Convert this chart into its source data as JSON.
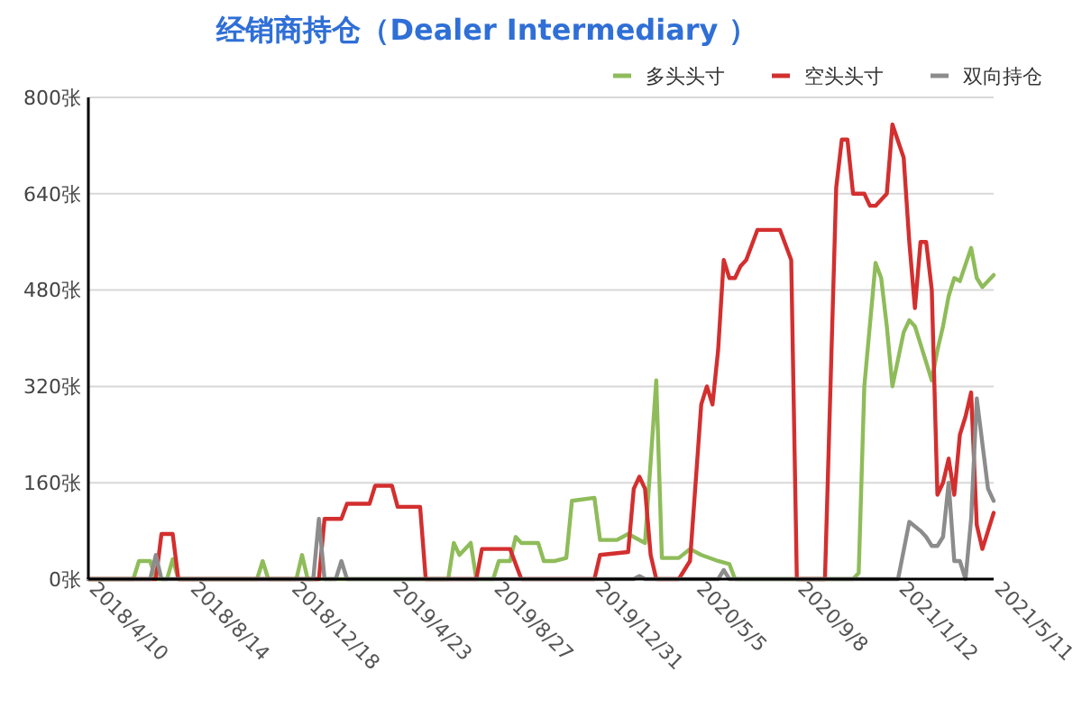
{
  "chart_data": {
    "type": "line",
    "title": "经销商持仓（Dealer Intermediary ）",
    "legend": "top right",
    "grid": "y",
    "marker": "none",
    "line_style": "solid",
    "xlim": [
      "2018-04-10",
      "2021-05-11"
    ],
    "xticks": [
      {
        "value": "2018-04-10",
        "label": "2018/4/10"
      },
      {
        "value": "2018-08-14",
        "label": "2018/8/14"
      },
      {
        "value": "2018-12-18",
        "label": "2018/12/18"
      },
      {
        "value": "2019-04-23",
        "label": "2019/4/23"
      },
      {
        "value": "2019-08-27",
        "label": "2019/8/27"
      },
      {
        "value": "2019-12-31",
        "label": "2019/12/31"
      },
      {
        "value": "2020-05-05",
        "label": "2020/5/5"
      },
      {
        "value": "2020-09-08",
        "label": "2020/9/8"
      },
      {
        "value": "2021-01-12",
        "label": "2021/1/12"
      },
      {
        "value": "2021-05-11",
        "label": "2021/5/11"
      }
    ],
    "ylim": [
      0,
      800
    ],
    "yticks": [
      {
        "value": 0,
        "label": "0张"
      },
      {
        "value": 160,
        "label": "160张"
      },
      {
        "value": 320,
        "label": "320张"
      },
      {
        "value": 480,
        "label": "480张"
      },
      {
        "value": 640,
        "label": "640张"
      },
      {
        "value": 800,
        "label": "800张"
      }
    ],
    "series": [
      {
        "name": "多头头寸",
        "color": "#8fbc5a",
        "x": [
          "2018-04-10",
          "2018-06-05",
          "2018-06-12",
          "2018-06-26",
          "2018-07-03",
          "2018-07-17",
          "2018-07-24",
          "2018-07-31",
          "2018-11-06",
          "2018-11-13",
          "2018-11-20",
          "2018-12-25",
          "2019-01-01",
          "2019-01-08",
          "2019-07-02",
          "2019-07-09",
          "2019-07-16",
          "2019-07-30",
          "2019-08-06",
          "2019-08-27",
          "2019-09-03",
          "2019-09-17",
          "2019-09-24",
          "2019-10-01",
          "2019-10-22",
          "2019-10-29",
          "2019-11-12",
          "2019-11-26",
          "2019-12-03",
          "2019-12-31",
          "2020-01-07",
          "2020-01-28",
          "2020-02-11",
          "2020-03-03",
          "2020-03-17",
          "2020-03-24",
          "2020-04-14",
          "2020-04-28",
          "2020-05-12",
          "2020-06-02",
          "2020-06-16",
          "2020-06-23",
          "2020-11-17",
          "2020-11-24",
          "2020-12-01",
          "2020-12-15",
          "2020-12-22",
          "2020-12-29",
          "2021-01-05",
          "2021-01-19",
          "2021-01-26",
          "2021-02-02",
          "2021-02-09",
          "2021-02-16",
          "2021-02-23",
          "2021-03-02",
          "2021-03-09",
          "2021-03-16",
          "2021-03-23",
          "2021-03-30",
          "2021-04-13",
          "2021-04-20",
          "2021-04-27",
          "2021-05-11"
        ],
        "values": [
          0,
          0,
          30,
          30,
          0,
          0,
          33,
          0,
          0,
          30,
          0,
          0,
          40,
          0,
          0,
          60,
          40,
          60,
          0,
          0,
          30,
          30,
          70,
          60,
          60,
          30,
          30,
          35,
          130,
          135,
          65,
          65,
          75,
          60,
          330,
          35,
          35,
          50,
          40,
          30,
          25,
          0,
          0,
          10,
          320,
          525,
          500,
          420,
          320,
          410,
          430,
          420,
          390,
          360,
          330,
          380,
          420,
          470,
          500,
          495,
          550,
          500,
          485,
          505
        ]
      },
      {
        "name": "空头头寸",
        "color": "#d32f2f",
        "x": [
          "2018-04-10",
          "2018-07-03",
          "2018-07-10",
          "2018-07-24",
          "2018-07-31",
          "2019-01-22",
          "2019-01-29",
          "2019-02-19",
          "2019-02-26",
          "2019-03-26",
          "2019-04-02",
          "2019-04-23",
          "2019-04-30",
          "2019-05-28",
          "2019-06-04",
          "2019-08-06",
          "2019-08-13",
          "2019-09-17",
          "2019-10-01",
          "2019-12-31",
          "2020-01-07",
          "2020-02-11",
          "2020-02-18",
          "2020-02-25",
          "2020-03-03",
          "2020-03-10",
          "2020-03-17",
          "2020-04-14",
          "2020-04-28",
          "2020-05-12",
          "2020-05-19",
          "2020-05-26",
          "2020-06-02",
          "2020-06-09",
          "2020-06-16",
          "2020-06-23",
          "2020-06-30",
          "2020-07-07",
          "2020-07-21",
          "2020-08-18",
          "2020-09-01",
          "2020-09-08",
          "2020-10-13",
          "2020-10-27",
          "2020-11-03",
          "2020-11-10",
          "2020-11-17",
          "2020-12-01",
          "2020-12-08",
          "2020-12-15",
          "2020-12-29",
          "2021-01-05",
          "2021-01-19",
          "2021-01-26",
          "2021-02-02",
          "2021-02-09",
          "2021-02-16",
          "2021-02-23",
          "2021-03-02",
          "2021-03-09",
          "2021-03-16",
          "2021-03-23",
          "2021-03-30",
          "2021-04-06",
          "2021-04-13",
          "2021-04-20",
          "2021-04-27",
          "2021-05-04",
          "2021-05-11"
        ],
        "values": [
          0,
          0,
          75,
          75,
          0,
          0,
          100,
          100,
          125,
          125,
          155,
          155,
          120,
          120,
          0,
          0,
          50,
          50,
          0,
          0,
          40,
          45,
          150,
          170,
          150,
          40,
          0,
          0,
          30,
          290,
          320,
          290,
          380,
          530,
          500,
          500,
          520,
          530,
          580,
          580,
          530,
          0,
          0,
          650,
          730,
          730,
          640,
          640,
          620,
          620,
          640,
          755,
          700,
          560,
          450,
          560,
          560,
          480,
          140,
          160,
          200,
          140,
          240,
          270,
          310,
          90,
          50,
          80,
          110
        ]
      },
      {
        "name": "双向持仓",
        "color": "#8c8c8c",
        "x": [
          "2018-04-10",
          "2018-06-26",
          "2018-07-03",
          "2018-07-10",
          "2019-01-15",
          "2019-01-22",
          "2019-01-29",
          "2019-02-12",
          "2019-02-19",
          "2019-02-26",
          "2020-02-18",
          "2020-02-25",
          "2020-03-03",
          "2020-06-02",
          "2020-06-09",
          "2020-06-16",
          "2021-01-12",
          "2021-01-26",
          "2021-02-09",
          "2021-02-16",
          "2021-02-23",
          "2021-03-02",
          "2021-03-09",
          "2021-03-16",
          "2021-03-23",
          "2021-03-30",
          "2021-04-06",
          "2021-04-13",
          "2021-04-20",
          "2021-05-04",
          "2021-05-11"
        ],
        "values": [
          0,
          0,
          40,
          0,
          0,
          100,
          0,
          0,
          30,
          0,
          0,
          5,
          0,
          0,
          15,
          0,
          0,
          95,
          80,
          70,
          55,
          55,
          70,
          160,
          30,
          30,
          0,
          100,
          300,
          150,
          130
        ]
      }
    ]
  }
}
